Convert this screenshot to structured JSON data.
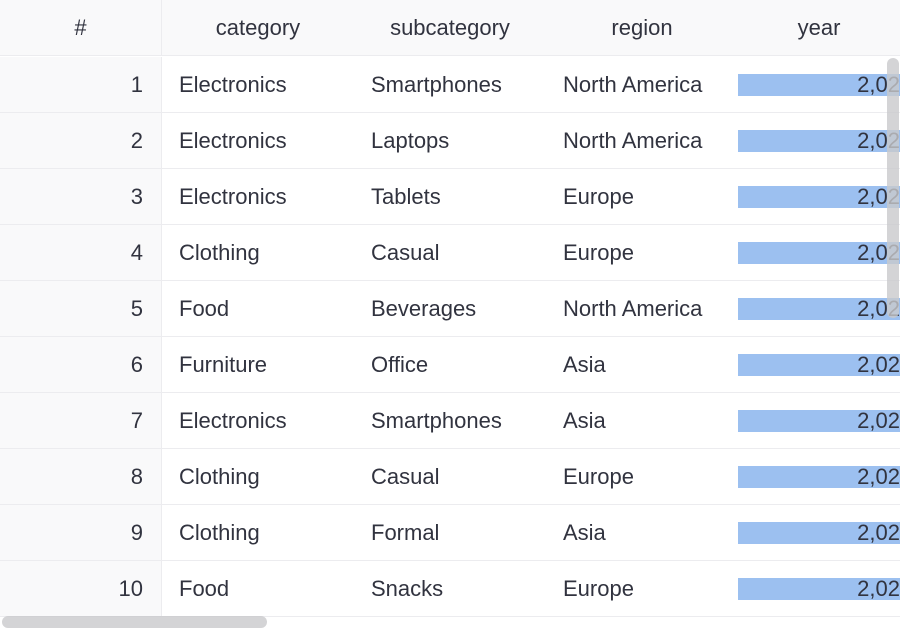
{
  "table": {
    "columns": [
      "#",
      "category",
      "subcategory",
      "region",
      "year"
    ],
    "bar_color": "#9cc0f0",
    "rows": [
      {
        "index": "1",
        "category": "Electronics",
        "subcategory": "Smartphones",
        "region": "North America",
        "year": "2,02"
      },
      {
        "index": "2",
        "category": "Electronics",
        "subcategory": "Laptops",
        "region": "North America",
        "year": "2,02"
      },
      {
        "index": "3",
        "category": "Electronics",
        "subcategory": "Tablets",
        "region": "Europe",
        "year": "2,02"
      },
      {
        "index": "4",
        "category": "Clothing",
        "subcategory": "Casual",
        "region": "Europe",
        "year": "2,02"
      },
      {
        "index": "5",
        "category": "Food",
        "subcategory": "Beverages",
        "region": "North America",
        "year": "2,02"
      },
      {
        "index": "6",
        "category": "Furniture",
        "subcategory": "Office",
        "region": "Asia",
        "year": "2,02"
      },
      {
        "index": "7",
        "category": "Electronics",
        "subcategory": "Smartphones",
        "region": "Asia",
        "year": "2,02"
      },
      {
        "index": "8",
        "category": "Clothing",
        "subcategory": "Casual",
        "region": "Europe",
        "year": "2,02"
      },
      {
        "index": "9",
        "category": "Clothing",
        "subcategory": "Formal",
        "region": "Asia",
        "year": "2,02"
      },
      {
        "index": "10",
        "category": "Food",
        "subcategory": "Snacks",
        "region": "Europe",
        "year": "2,02"
      }
    ]
  }
}
